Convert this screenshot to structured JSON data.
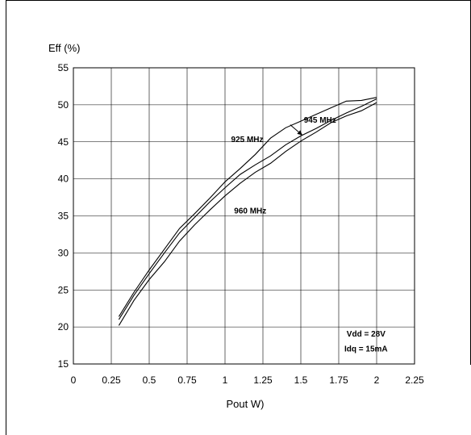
{
  "chart_data": {
    "type": "line",
    "title": "",
    "ylabel": "Eff (%)",
    "xlabel": "Pout W)",
    "xlim": [
      0,
      2.25
    ],
    "ylim": [
      15,
      55
    ],
    "xticks": [
      0,
      0.25,
      0.5,
      0.75,
      1,
      1.25,
      1.5,
      1.75,
      2,
      2.25
    ],
    "xtick_labels": [
      "0",
      "0.25",
      "0.5",
      "0.75",
      "1",
      "1.25",
      "1.5",
      "1.75",
      "2",
      "2.25"
    ],
    "yticks": [
      15,
      20,
      25,
      30,
      35,
      40,
      45,
      50,
      55
    ],
    "ytick_labels": [
      "15",
      "20",
      "25",
      "30",
      "35",
      "40",
      "45",
      "50",
      "55"
    ],
    "grid": true,
    "series": [
      {
        "name": "925 MHz",
        "x": [
          0.3,
          0.4,
          0.5,
          0.6,
          0.7,
          0.8,
          0.9,
          1.0,
          1.1,
          1.2,
          1.3,
          1.4,
          1.5,
          1.6,
          1.7,
          1.8,
          1.9,
          2.0
        ],
        "y": [
          21.4,
          24.7,
          27.7,
          30.5,
          33.3,
          35.3,
          37.4,
          39.6,
          41.4,
          43.3,
          45.5,
          46.9,
          47.8,
          48.7,
          49.6,
          50.5,
          50.6,
          51.0
        ]
      },
      {
        "name": "945 MHz",
        "x": [
          0.3,
          0.4,
          0.5,
          0.6,
          0.7,
          0.8,
          0.9,
          1.0,
          1.1,
          1.2,
          1.3,
          1.4,
          1.5,
          1.6,
          1.7,
          1.8,
          1.9,
          2.0
        ],
        "y": [
          21.0,
          24.3,
          27.2,
          30.0,
          32.7,
          34.8,
          36.9,
          38.8,
          40.6,
          41.9,
          43.1,
          44.6,
          45.8,
          46.8,
          47.9,
          48.9,
          49.8,
          50.8
        ]
      },
      {
        "name": "960 MHz",
        "x": [
          0.3,
          0.4,
          0.5,
          0.6,
          0.7,
          0.8,
          0.9,
          1.0,
          1.1,
          1.2,
          1.3,
          1.4,
          1.5,
          1.6,
          1.7,
          1.8,
          1.9,
          2.0
        ],
        "y": [
          20.2,
          23.6,
          26.4,
          28.8,
          31.6,
          33.8,
          35.8,
          37.7,
          39.4,
          40.9,
          42.1,
          43.7,
          45.1,
          46.3,
          47.6,
          48.5,
          49.2,
          50.3
        ]
      }
    ],
    "annotations": [
      {
        "text": "945 MHz",
        "x": 1.52,
        "y": 47.6
      },
      {
        "text": "925 MHz",
        "x": 1.04,
        "y": 45.0
      },
      {
        "text": "960 MHz",
        "x": 1.06,
        "y": 35.3
      },
      {
        "text": "Vdd = 28V",
        "x": 1.93,
        "y": 18.7
      },
      {
        "text": "Idq = 15mA",
        "x": 1.93,
        "y": 16.7
      }
    ],
    "arrow": {
      "from": [
        1.43,
        47.3
      ],
      "to": [
        1.51,
        45.9
      ]
    }
  }
}
